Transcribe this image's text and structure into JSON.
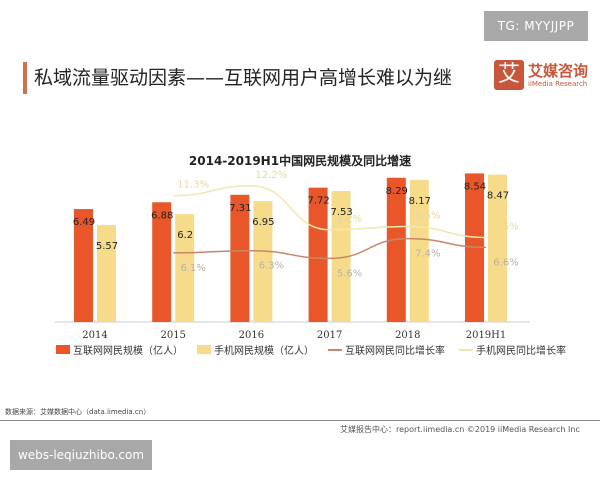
{
  "watermark_top": "TG: MYYJJPP",
  "watermark_bottom": "webs-leqiuzhibo.com",
  "header": {
    "title": "私域流量驱动因素——互联网用户高增长难以为继",
    "logo_mark": "艾",
    "logo_cn": "艾媒咨询",
    "logo_en": "iiMedia Research"
  },
  "source": "数据来源：艾媒数据中心（data.iimedia.cn）",
  "footer": "艾媒报告中心：report.iimedia.cn ©2019  iiMedia Research  Inc",
  "colors": {
    "internet_bar": "#e8562a",
    "mobile_bar": "#f6dc8a",
    "internet_line": "#c8876a",
    "mobile_line": "#f3e6b0"
  },
  "chart_data": {
    "type": "bar",
    "title": "2014-2019H1中国网民规模及同比增速",
    "categories": [
      "2014",
      "2015",
      "2016",
      "2017",
      "2018",
      "2019H1"
    ],
    "series": [
      {
        "name": "互联网网民规模（亿人）",
        "type": "bar",
        "values": [
          6.49,
          6.88,
          7.31,
          7.72,
          8.29,
          8.54
        ]
      },
      {
        "name": "手机网民规模（亿人）",
        "type": "bar",
        "values": [
          5.57,
          6.2,
          6.95,
          7.53,
          8.17,
          8.47
        ]
      },
      {
        "name": "互联网网民同比增长率",
        "type": "line",
        "axis": "secondary",
        "values": [
          null,
          "6.1%",
          "6.3%",
          "5.6%",
          "7.4%",
          "6.6%"
        ]
      },
      {
        "name": "手机网民同比增长率",
        "type": "line",
        "axis": "secondary",
        "values": [
          null,
          "11.3%",
          "12.2%",
          "8.2%",
          "8.5%",
          "7.5%"
        ]
      }
    ],
    "grid": false,
    "legend": "bottom"
  }
}
